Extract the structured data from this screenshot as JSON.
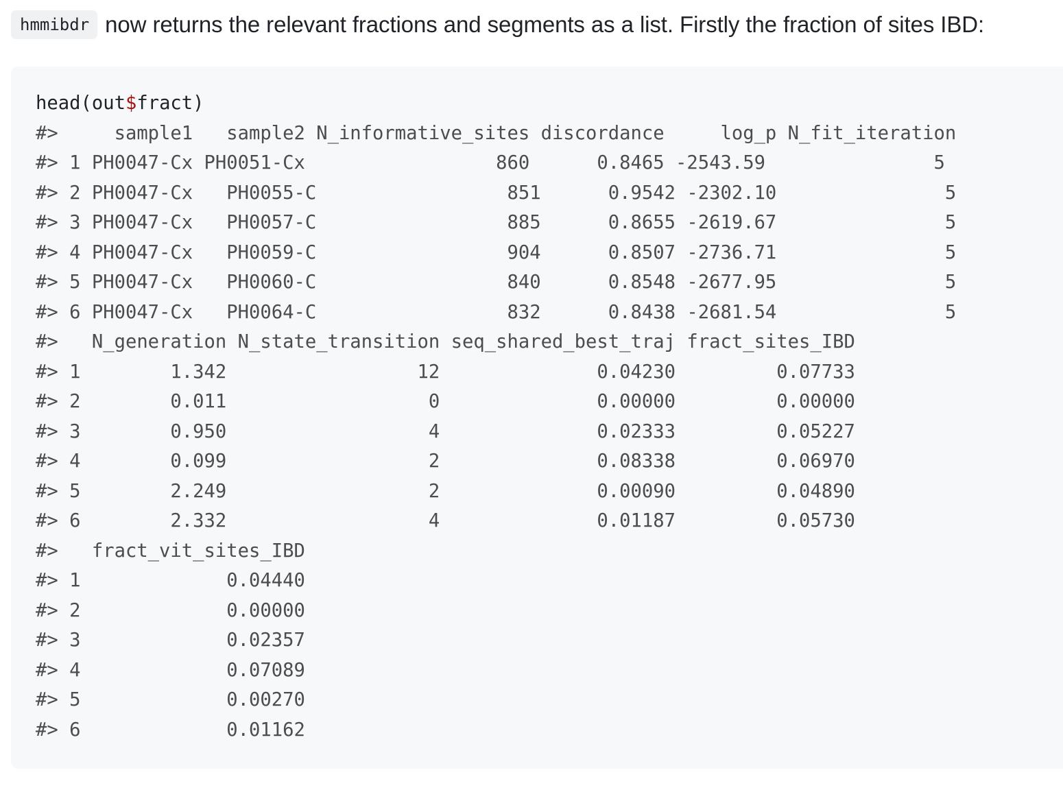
{
  "intro": {
    "code": "hmmibdr",
    "text": "now returns the relevant fractions and segments as a list. Firstly the fraction of sites IBD:"
  },
  "code_block": {
    "command_prefix": "head(out",
    "command_dollar": "$",
    "command_suffix": "fract)",
    "output_lines": [
      "#>     sample1   sample2 N_informative_sites discordance     log_p N_fit_iteration",
      "#> 1 PH0047-Cx PH0051-Cx                 860      0.8465 -2543.59               5",
      "#> 2 PH0047-Cx   PH0055-C                 851      0.9542 -2302.10               5",
      "#> 3 PH0047-Cx   PH0057-C                 885      0.8655 -2619.67               5",
      "#> 4 PH0047-Cx   PH0059-C                 904      0.8507 -2736.71               5",
      "#> 5 PH0047-Cx   PH0060-C                 840      0.8548 -2677.95               5",
      "#> 6 PH0047-Cx   PH0064-C                 832      0.8438 -2681.54               5",
      "#>   N_generation N_state_transition seq_shared_best_traj fract_sites_IBD",
      "#> 1        1.342                 12              0.04230         0.07733",
      "#> 2        0.011                  0              0.00000         0.00000",
      "#> 3        0.950                  4              0.02333         0.05227",
      "#> 4        0.099                  2              0.08338         0.06970",
      "#> 5        2.249                  2              0.00090         0.04890",
      "#> 6        2.332                  4              0.01187         0.05730",
      "#>   fract_vit_sites_IBD",
      "#> 1             0.04440",
      "#> 2             0.00000",
      "#> 3             0.02357",
      "#> 4             0.07089",
      "#> 5             0.00270",
      "#> 6             0.01162"
    ]
  }
}
